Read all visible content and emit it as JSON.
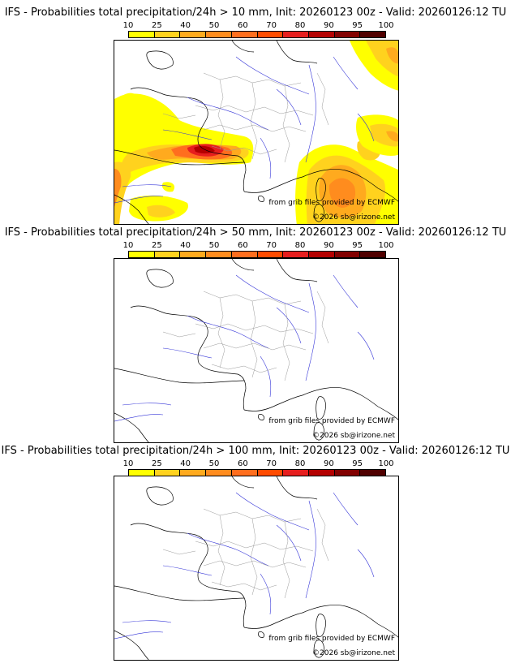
{
  "panels": [
    {
      "title": "IFS - Probabilities total precipitation/24h > 10 mm, Init: 20260123 00z - Valid: 20260126:12 TU",
      "threshold_mm": 10,
      "has_precip": true
    },
    {
      "title": "IFS - Probabilities total precipitation/24h > 50 mm, Init: 20260123 00z - Valid: 20260126:12 TU",
      "threshold_mm": 50,
      "has_precip": false
    },
    {
      "title": "IFS - Probabilities total precipitation/24h > 100 mm, Init: 20260123 00z - Valid: 20260126:12 TU",
      "threshold_mm": 100,
      "has_precip": false
    }
  ],
  "colorbar": {
    "ticks": [
      "10",
      "25",
      "40",
      "50",
      "60",
      "70",
      "80",
      "90",
      "95",
      "100"
    ],
    "colors": [
      "#ffff00",
      "#ffd21e",
      "#ffaa1e",
      "#ff8c1e",
      "#ff6e1e",
      "#ff4b00",
      "#e61e1e",
      "#b40000",
      "#820000",
      "#500000"
    ]
  },
  "credits": {
    "source": "from grib files provided by ECMWF",
    "copyright": "©2026 sb@irizone.net"
  },
  "colors": {
    "coastline": "#000000",
    "rivers": "#3535d8",
    "borders": "#999999"
  }
}
